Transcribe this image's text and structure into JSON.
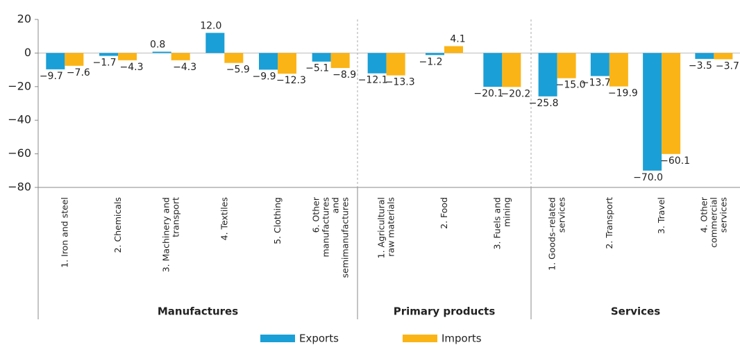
{
  "chart_data": {
    "type": "bar",
    "groups": [
      {
        "name": "Manufactures",
        "categories": [
          "1. Iron and steel",
          "2. Chemicals",
          "3. Machinery and\ntransport",
          "4. Textiles",
          "5. Clothing",
          "6. Other\nmanufactures\nand\nsemimanufactures"
        ]
      },
      {
        "name": "Primary products",
        "categories": [
          "1. Agricultural\nraw materials",
          "2. Food",
          "3. Fuels and\nmining"
        ]
      },
      {
        "name": "Services",
        "categories": [
          "1. Goods–related\nservices",
          "2. Transport",
          "3. Travel",
          "4. Other\ncommercial\nservices"
        ]
      }
    ],
    "series": [
      {
        "name": "Exports",
        "color": "#1a9fd6",
        "values": [
          -9.7,
          -1.7,
          0.8,
          12.0,
          -9.9,
          -5.1,
          -12.1,
          -1.2,
          -20.1,
          -25.8,
          -13.7,
          -70.0,
          -3.5
        ],
        "value_labels": [
          "−9.7",
          "−1.7",
          "0.8",
          "12.0",
          "−9.9",
          "−5.1",
          "−12.1",
          "−1.2",
          "−20.1",
          "−25.8",
          "−13.7",
          "−70.0",
          "−3.5"
        ]
      },
      {
        "name": "Imports",
        "color": "#fbb416",
        "values": [
          -7.6,
          -4.3,
          -4.3,
          -5.9,
          -12.3,
          -8.9,
          -13.3,
          4.1,
          -20.2,
          -15.0,
          -19.9,
          -60.1,
          -3.7
        ],
        "value_labels": [
          "−7.6",
          "−4.3",
          "−4.3",
          "−5.9",
          "−12.3",
          "−8.9",
          "−13.3",
          "4.1",
          "−20.2",
          "−15.0",
          "−19.9",
          "−60.1",
          "−3.7"
        ]
      }
    ],
    "ylim": [
      -80,
      20
    ],
    "yticks": [
      20,
      0,
      {
        "value": -20,
        "label": "−20"
      },
      {
        "value": -40,
        "label": "−40"
      },
      {
        "value": -60,
        "label": "−60"
      },
      {
        "value": -80,
        "label": "−80"
      }
    ]
  }
}
